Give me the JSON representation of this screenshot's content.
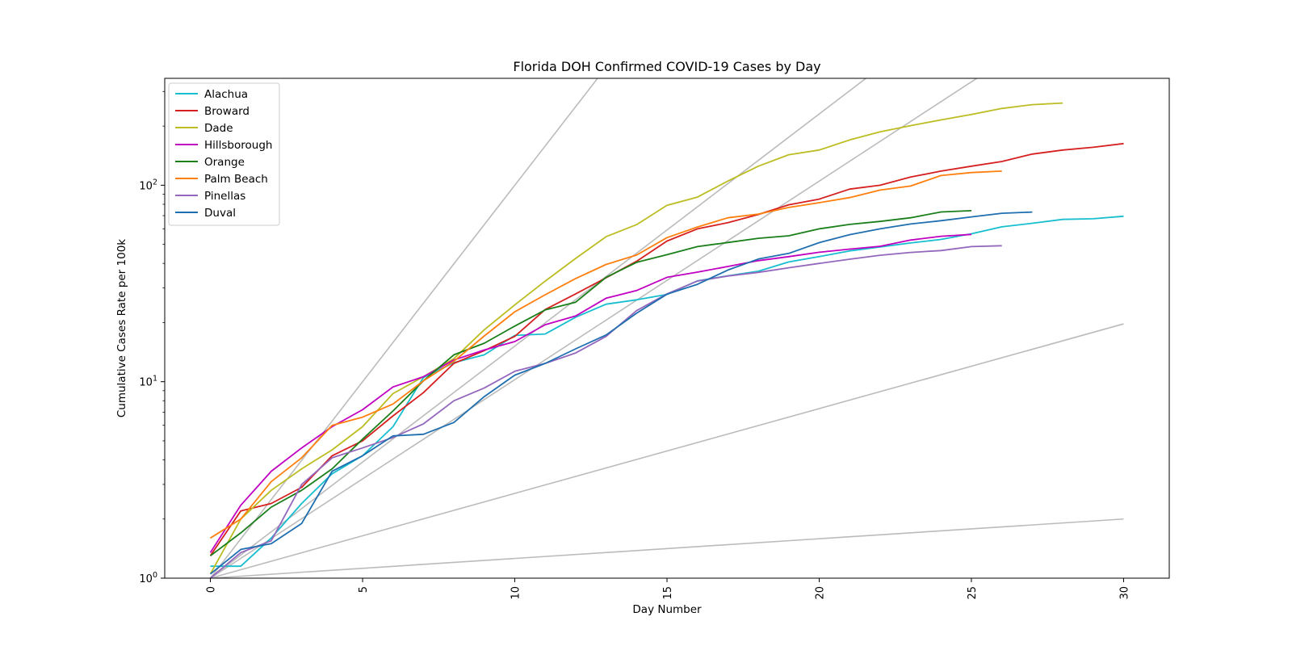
{
  "chart_data": {
    "type": "line",
    "title": "Florida DOH Confirmed COVID-19 Cases by Day",
    "xlabel": "Day Number",
    "ylabel": "Cumulative Cases Rate per 100k",
    "xlim": [
      -1.5,
      31.5
    ],
    "ylim": [
      1,
      350
    ],
    "yscale": "log",
    "x_ticks": [
      0,
      5,
      10,
      15,
      20,
      25,
      30
    ],
    "y_ticks": [
      {
        "value": 1,
        "base": "10",
        "exp": "0"
      },
      {
        "value": 10,
        "base": "10",
        "exp": "1"
      },
      {
        "value": 100,
        "base": "10",
        "exp": "2"
      }
    ],
    "legend_position": "upper-left",
    "grid": false,
    "reference_color": "#bbbbbb",
    "reference_lines": [
      {
        "x": [
          0,
          30
        ],
        "y": [
          1,
          2
        ]
      },
      {
        "x": [
          0,
          30
        ],
        "y": [
          1,
          19.7
        ]
      },
      {
        "x": [
          0,
          30
        ],
        "y": [
          1,
          1075
        ]
      },
      {
        "x": [
          0,
          30
        ],
        "y": [
          1,
          3500
        ]
      },
      {
        "x": [
          0,
          30
        ],
        "y": [
          1,
          1000000
        ]
      }
    ],
    "series": [
      {
        "name": "Alachua",
        "color": "#17becf",
        "x": [
          0,
          1,
          2,
          3,
          4,
          5,
          6,
          7,
          8,
          9,
          10,
          11,
          12,
          13,
          14,
          15,
          16,
          17,
          18,
          19,
          20,
          21,
          22,
          23,
          24,
          25,
          26,
          27,
          28,
          29,
          30
        ],
        "y": [
          1.15,
          1.15,
          1.6,
          2.4,
          3.4,
          4.2,
          5.9,
          10.5,
          12.5,
          13.7,
          17.2,
          17.5,
          21.3,
          24.8,
          26.1,
          27.8,
          32.6,
          34.6,
          36.5,
          40.7,
          43.3,
          46.3,
          48.5,
          50.8,
          53,
          56.6,
          61.4,
          64,
          67,
          67.5,
          69.5
        ]
      },
      {
        "name": "Broward",
        "color": "#d62020",
        "x": [
          0,
          1,
          2,
          3,
          4,
          5,
          6,
          7,
          8,
          9,
          10,
          11,
          12,
          13,
          14,
          15,
          16,
          17,
          18,
          19,
          20,
          21,
          22,
          23,
          24,
          25,
          26,
          27,
          28,
          29,
          30
        ],
        "y": [
          1.3,
          2.2,
          2.4,
          2.9,
          4.2,
          5.0,
          6.7,
          8.8,
          12.4,
          14.4,
          17,
          23.3,
          28,
          33.8,
          41,
          52,
          60,
          64.5,
          71,
          79.5,
          85,
          95.5,
          100,
          110,
          118,
          125,
          132,
          144,
          151,
          156,
          163
        ]
      },
      {
        "name": "Dade",
        "color": "#bcbd22",
        "x": [
          0,
          1,
          2,
          3,
          4,
          5,
          6,
          7,
          8,
          9,
          10,
          11,
          12,
          13,
          14,
          15,
          16,
          17,
          18,
          19,
          20,
          21,
          22,
          23,
          24,
          25,
          26,
          27,
          28
        ],
        "y": [
          1.05,
          2.0,
          2.8,
          3.6,
          4.5,
          5.9,
          8.7,
          10.6,
          13.1,
          18.4,
          24.6,
          32.5,
          42.4,
          54.7,
          63,
          79,
          87,
          105,
          125,
          143,
          151,
          170,
          187,
          201,
          215,
          229,
          246,
          257,
          262
        ]
      },
      {
        "name": "Hillsborough",
        "color": "#c000c0",
        "x": [
          0,
          1,
          2,
          3,
          4,
          5,
          6,
          7,
          8,
          9,
          10,
          11,
          12,
          13,
          14,
          15,
          16,
          17,
          18,
          19,
          20,
          21,
          22,
          23,
          24,
          25
        ],
        "y": [
          1.35,
          2.35,
          3.5,
          4.6,
          5.9,
          7.2,
          9.4,
          10.6,
          12.9,
          14.5,
          16,
          19.5,
          21.6,
          26.6,
          29.1,
          34,
          36.1,
          38.6,
          41.3,
          43.3,
          45.6,
          47.3,
          48.9,
          52.6,
          55,
          56.2
        ]
      },
      {
        "name": "Orange",
        "color": "#1a7f1a",
        "x": [
          0,
          1,
          2,
          3,
          4,
          5,
          6,
          7,
          8,
          9,
          10,
          11,
          12,
          13,
          14,
          15,
          16,
          17,
          18,
          19,
          20,
          21,
          22,
          23,
          24,
          25
        ],
        "y": [
          1.3,
          1.7,
          2.3,
          2.8,
          3.6,
          5.1,
          7.1,
          10.1,
          13.7,
          15.7,
          19.2,
          23.2,
          25.4,
          34,
          40.5,
          44.3,
          48.7,
          51.1,
          53.7,
          55.3,
          60,
          63.2,
          65.4,
          68.3,
          73.1,
          74.2
        ]
      },
      {
        "name": "Palm Beach",
        "color": "#ff7f0e",
        "x": [
          0,
          1,
          2,
          3,
          4,
          5,
          6,
          7,
          8,
          9,
          10,
          11,
          12,
          13,
          14,
          15,
          16,
          17,
          18,
          19,
          20,
          21,
          22,
          23,
          24,
          25,
          26
        ],
        "y": [
          1.6,
          2.0,
          3.1,
          4.1,
          6.0,
          6.6,
          7.7,
          10.1,
          12.7,
          17.1,
          22.7,
          27.7,
          33.5,
          39.5,
          44.1,
          54.1,
          61.3,
          68.3,
          71.3,
          77.1,
          81.5,
          86.5,
          94.5,
          99,
          112,
          116,
          118
        ]
      },
      {
        "name": "Pinellas",
        "color": "#9467bd",
        "x": [
          0,
          1,
          2,
          3,
          4,
          5,
          6,
          7,
          8,
          9,
          10,
          11,
          12,
          13,
          14,
          15,
          16,
          17,
          18,
          19,
          20,
          21,
          22,
          23,
          24,
          25,
          26
        ],
        "y": [
          1.0,
          1.35,
          1.55,
          3.0,
          4.1,
          4.6,
          5.2,
          6.1,
          8.0,
          9.3,
          11.3,
          12.4,
          14,
          17,
          23,
          28,
          32.5,
          34.5,
          36,
          38,
          40,
          42,
          44,
          45.5,
          46.5,
          48.7,
          49.2
        ]
      },
      {
        "name": "Duval",
        "color": "#1f6fb0",
        "x": [
          0,
          1,
          2,
          3,
          4,
          5,
          6,
          7,
          8,
          9,
          10,
          11,
          12,
          13,
          14,
          15,
          16,
          17,
          18,
          19,
          20,
          21,
          22,
          23,
          24,
          25,
          26,
          27
        ],
        "y": [
          1.05,
          1.4,
          1.5,
          1.9,
          3.5,
          4.2,
          5.3,
          5.4,
          6.2,
          8.4,
          10.8,
          12.4,
          14.7,
          17.3,
          22.3,
          27.9,
          31.3,
          37,
          42.1,
          45,
          51,
          56,
          60,
          63.5,
          66,
          69,
          72,
          73
        ]
      }
    ]
  }
}
